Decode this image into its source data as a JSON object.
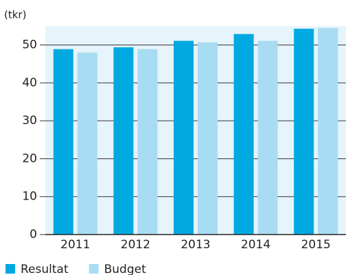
{
  "chart_data": {
    "type": "bar",
    "y_label": "(tkr)",
    "categories": [
      "2011",
      "2012",
      "2013",
      "2014",
      "2015"
    ],
    "series": [
      {
        "name": "Resultat",
        "color": "#00a9e0",
        "values": [
          48.9,
          49.4,
          51.1,
          52.9,
          54.3
        ]
      },
      {
        "name": "Budget",
        "color": "#a8dcf2",
        "values": [
          48.0,
          48.9,
          50.7,
          51.1,
          54.5
        ]
      }
    ],
    "ylim": [
      0,
      55
    ],
    "yticks": [
      0,
      10,
      20,
      30,
      40,
      50
    ],
    "grid": true
  }
}
